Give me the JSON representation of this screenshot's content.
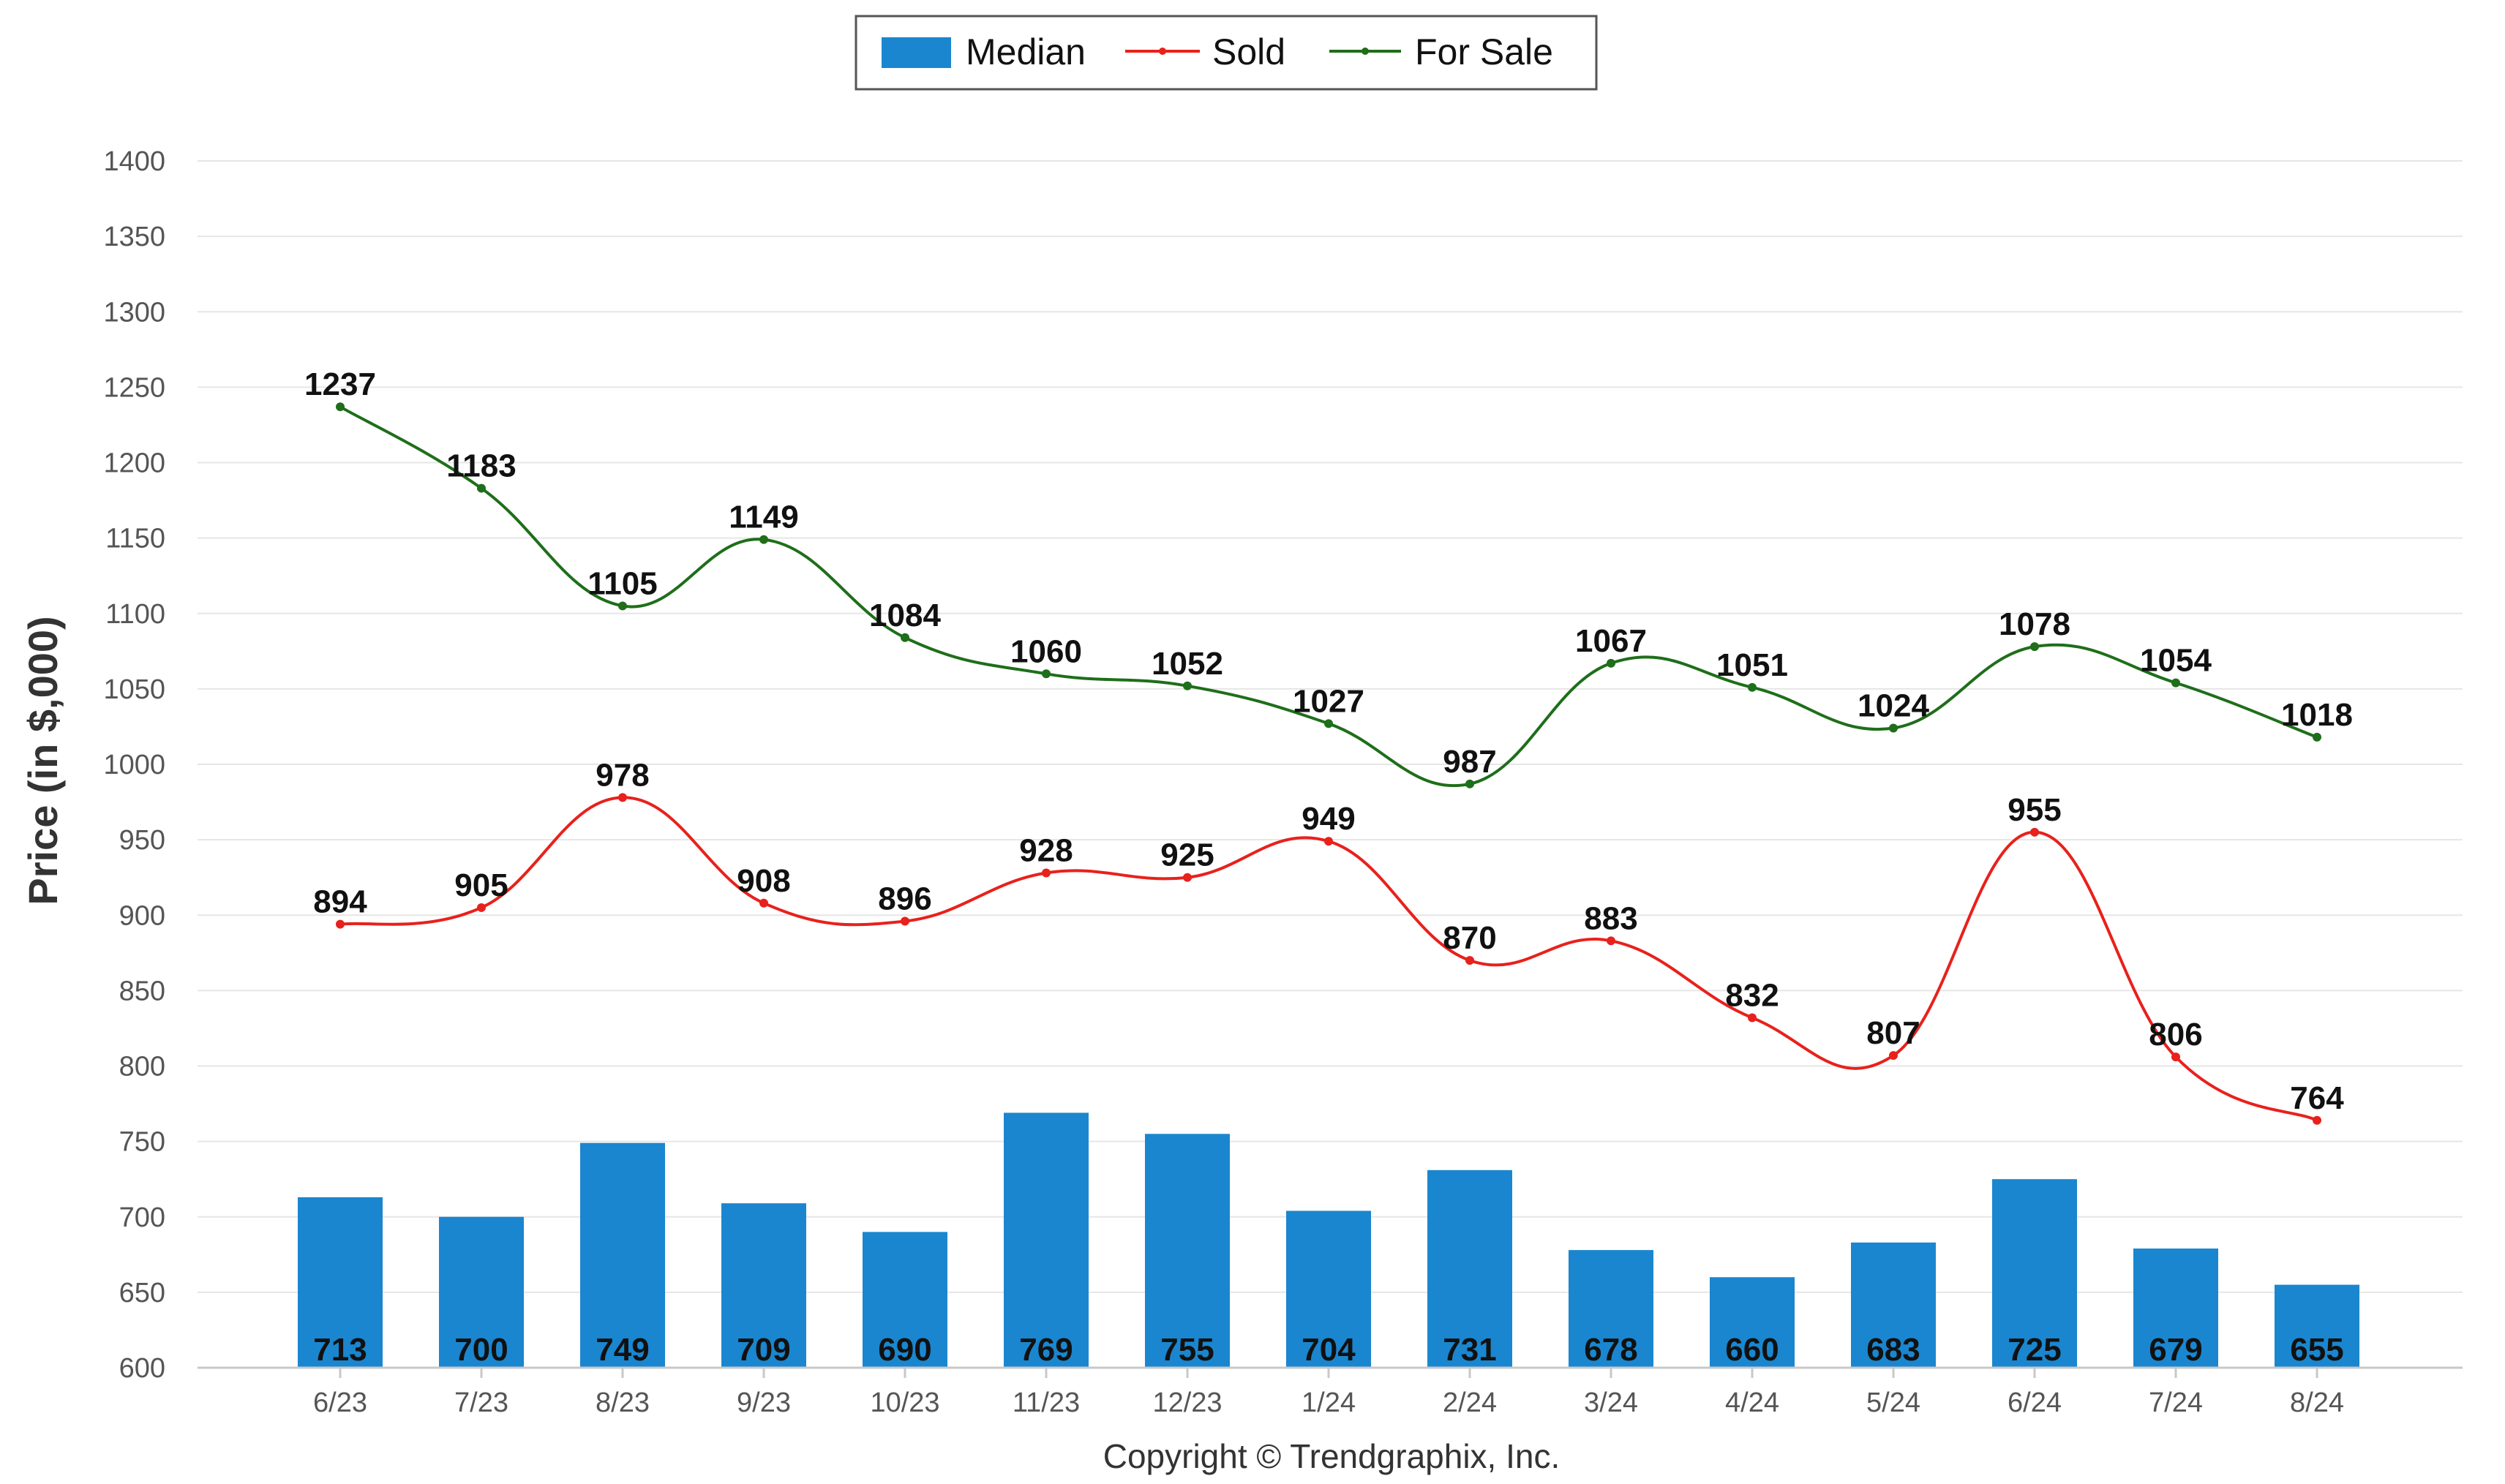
{
  "chart_data": {
    "type": "bar+line",
    "categories": [
      "6/23",
      "7/23",
      "8/23",
      "9/23",
      "10/23",
      "11/23",
      "12/23",
      "1/24",
      "2/24",
      "3/24",
      "4/24",
      "5/24",
      "6/24",
      "7/24",
      "8/24"
    ],
    "series": [
      {
        "name": "Median",
        "kind": "bar",
        "color": "#1a86cf",
        "values": [
          713,
          700,
          749,
          709,
          690,
          769,
          755,
          704,
          731,
          678,
          660,
          683,
          725,
          679,
          655
        ]
      },
      {
        "name": "Sold",
        "kind": "line",
        "color": "#e8211c",
        "values": [
          894,
          905,
          978,
          908,
          896,
          928,
          925,
          949,
          870,
          883,
          832,
          807,
          955,
          806,
          764
        ]
      },
      {
        "name": "For Sale",
        "kind": "line",
        "color": "#1f6e1a",
        "values": [
          1237,
          1183,
          1105,
          1149,
          1084,
          1060,
          1052,
          1027,
          987,
          1067,
          1051,
          1024,
          1078,
          1054,
          1018
        ]
      }
    ],
    "ylabel": "Price (in $,000)",
    "xlabel": "",
    "ylim": [
      600,
      1400
    ],
    "yticks": [
      600,
      650,
      700,
      750,
      800,
      850,
      900,
      950,
      1000,
      1050,
      1100,
      1150,
      1200,
      1250,
      1300,
      1350,
      1400
    ],
    "grid": true,
    "legend_position": "top-center"
  },
  "copyright": "Copyright © Trendgraphix, Inc."
}
